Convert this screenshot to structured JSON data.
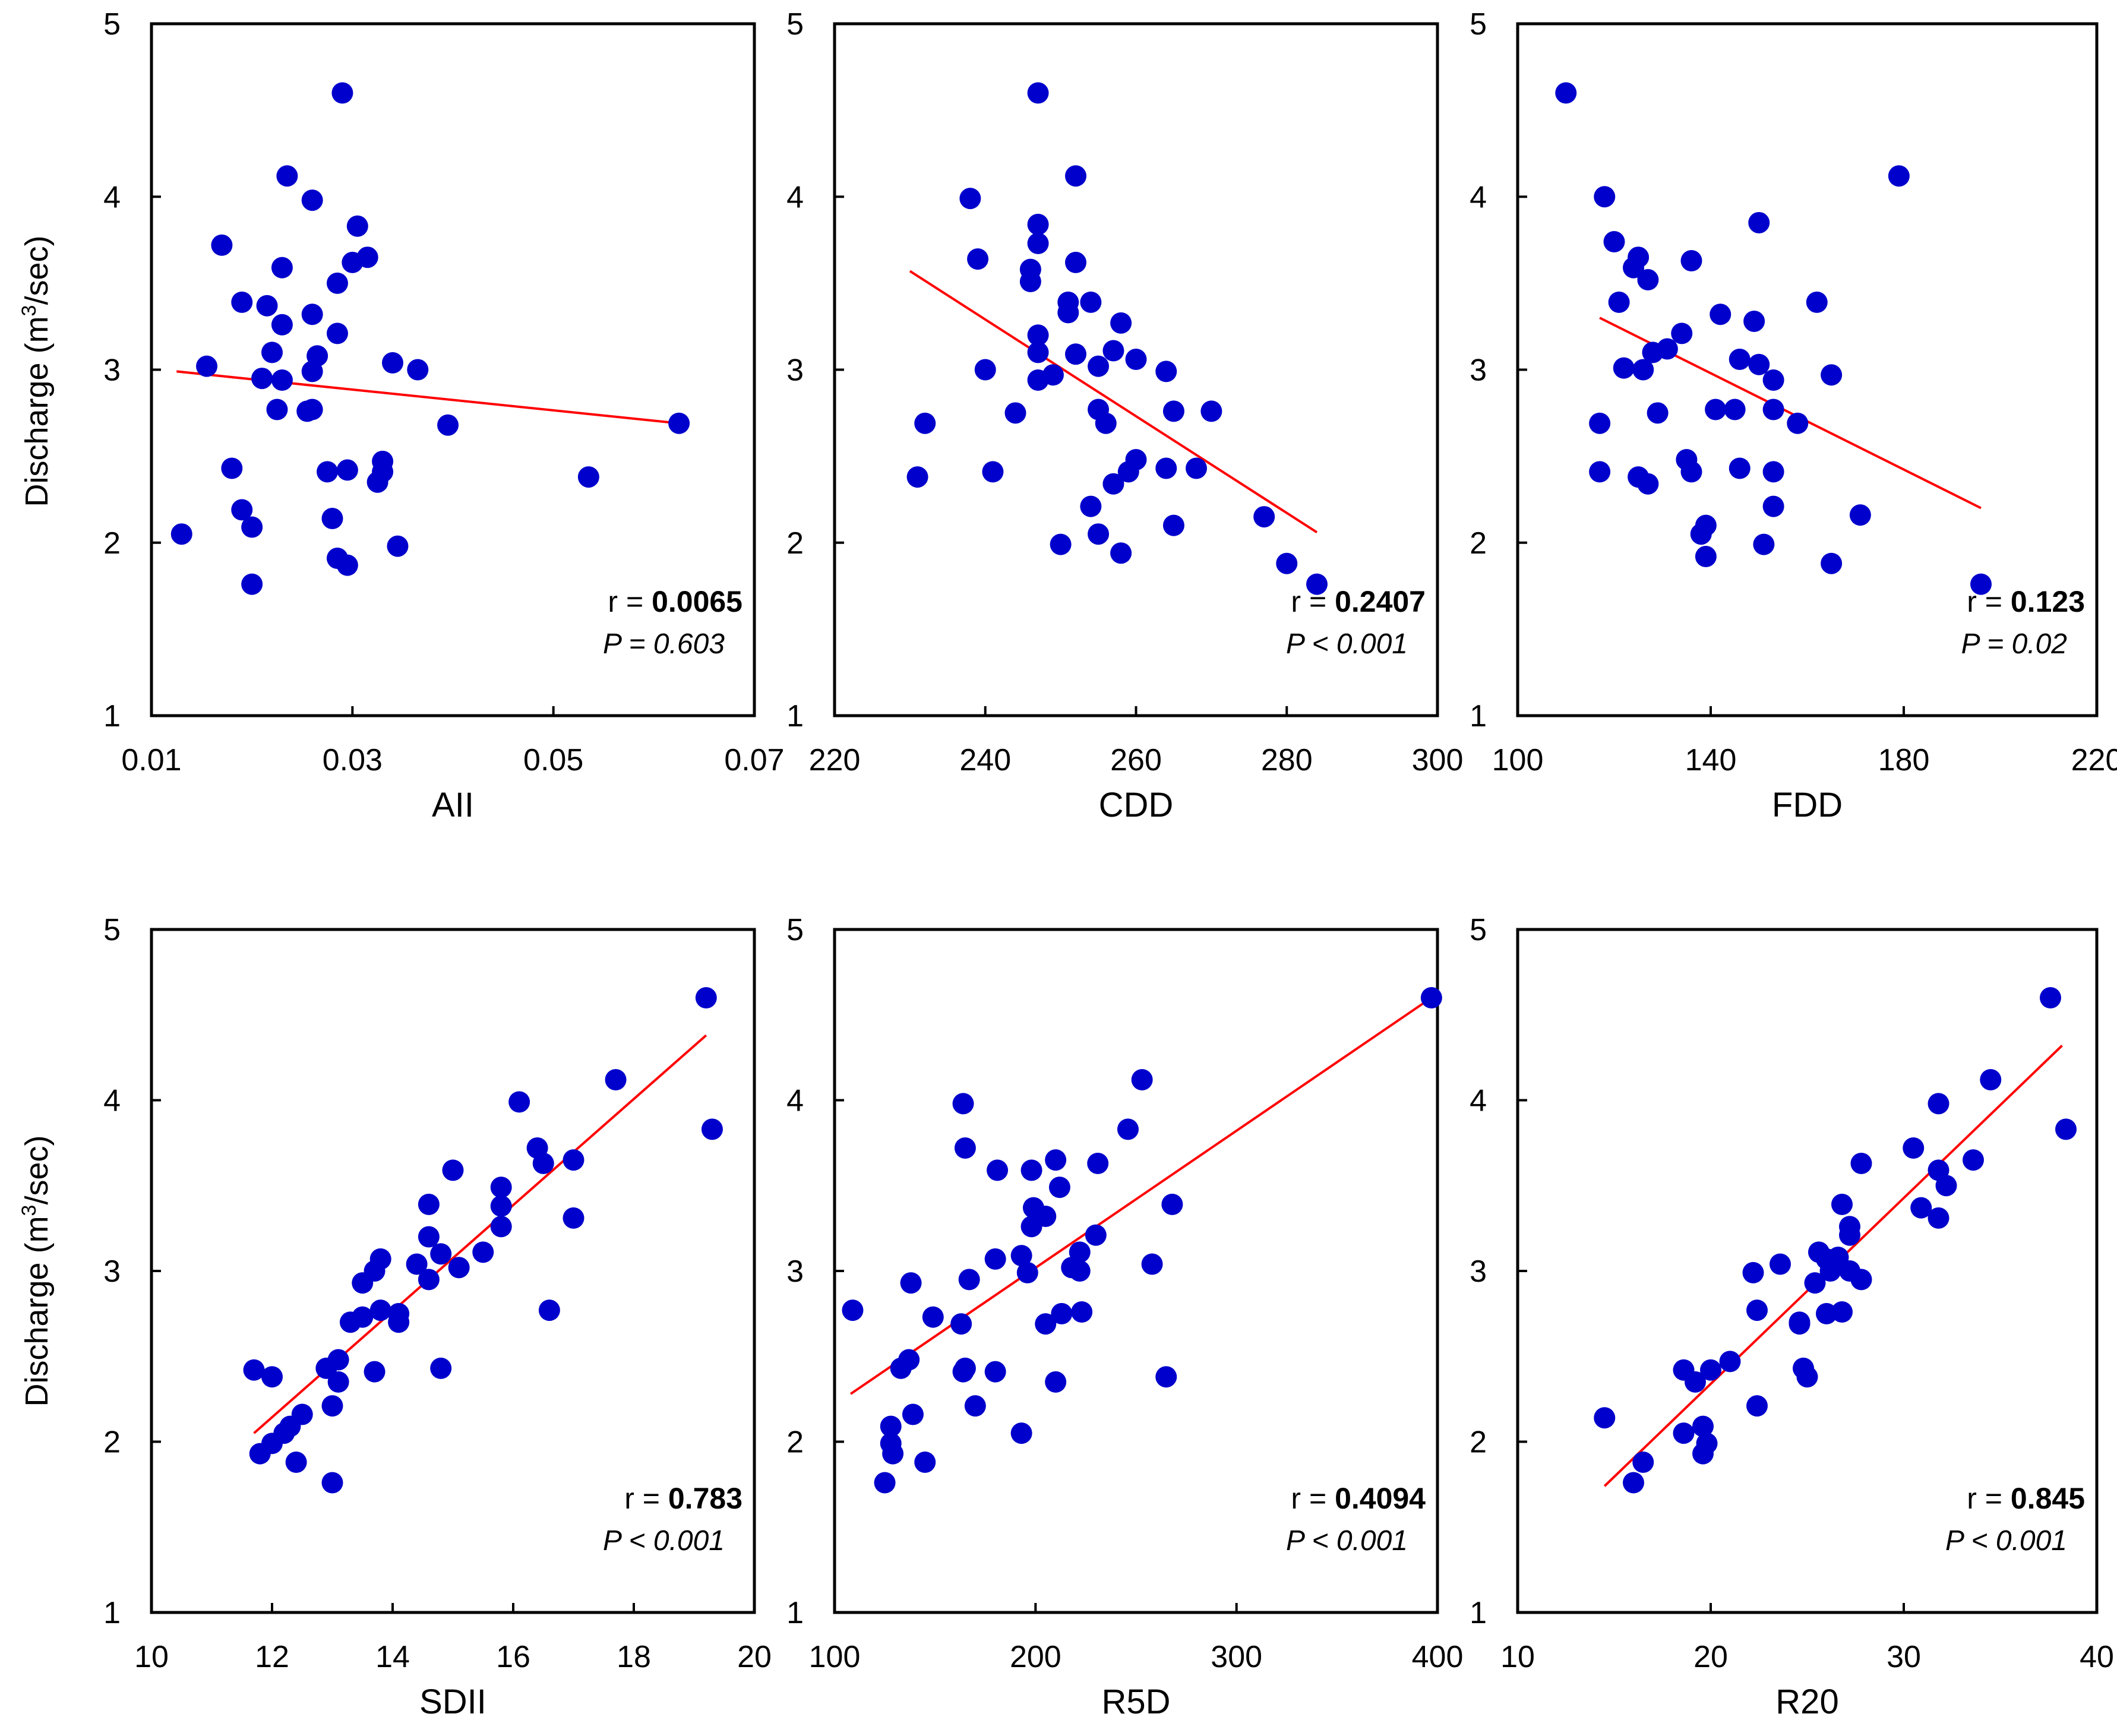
{
  "figure": {
    "ylabel_main": "Discharge (m",
    "ylabel_sup": "3",
    "ylabel_tail": "/sec)"
  },
  "chart_data": [
    {
      "type": "scatter",
      "xlabel": "AII",
      "ylabel": "Discharge (m3/sec)",
      "xlim": [
        0.01,
        0.07
      ],
      "ylim": [
        1,
        5
      ],
      "xticks": [
        0.01,
        0.03,
        0.05,
        0.07
      ],
      "xtick_labels": [
        "0.01",
        "0.03",
        "0.05",
        "0.07"
      ],
      "yticks": [
        1,
        2,
        3,
        4,
        5
      ],
      "ytick_labels": [
        "1",
        "2",
        "3",
        "4",
        "5"
      ],
      "r_label": "r = ",
      "r_value": "0.0065",
      "p_text": "P = 0.603",
      "fit": [
        [
          0.0125,
          2.99
        ],
        [
          0.0625,
          2.69
        ]
      ],
      "points": [
        [
          0.029,
          4.6
        ],
        [
          0.0235,
          4.12
        ],
        [
          0.026,
          3.98
        ],
        [
          0.0305,
          3.83
        ],
        [
          0.017,
          3.72
        ],
        [
          0.0315,
          3.65
        ],
        [
          0.03,
          3.62
        ],
        [
          0.023,
          3.59
        ],
        [
          0.0285,
          3.5
        ],
        [
          0.019,
          3.39
        ],
        [
          0.0215,
          3.37
        ],
        [
          0.026,
          3.32
        ],
        [
          0.023,
          3.26
        ],
        [
          0.0285,
          3.21
        ],
        [
          0.022,
          3.1
        ],
        [
          0.0265,
          3.08
        ],
        [
          0.0155,
          3.02
        ],
        [
          0.034,
          3.04
        ],
        [
          0.0365,
          3.0
        ],
        [
          0.026,
          2.99
        ],
        [
          0.021,
          2.95
        ],
        [
          0.023,
          2.94
        ],
        [
          0.0225,
          2.77
        ],
        [
          0.0255,
          2.76
        ],
        [
          0.026,
          2.77
        ],
        [
          0.0395,
          2.68
        ],
        [
          0.0625,
          2.69
        ],
        [
          0.033,
          2.47
        ],
        [
          0.018,
          2.43
        ],
        [
          0.0275,
          2.41
        ],
        [
          0.0295,
          2.42
        ],
        [
          0.033,
          2.41
        ],
        [
          0.0535,
          2.38
        ],
        [
          0.0325,
          2.35
        ],
        [
          0.019,
          2.19
        ],
        [
          0.028,
          2.14
        ],
        [
          0.02,
          2.09
        ],
        [
          0.013,
          2.05
        ],
        [
          0.0345,
          1.98
        ],
        [
          0.0285,
          1.91
        ],
        [
          0.0295,
          1.87
        ],
        [
          0.02,
          1.76
        ]
      ]
    },
    {
      "type": "scatter",
      "xlabel": "CDD",
      "ylabel": "",
      "xlim": [
        220,
        300
      ],
      "ylim": [
        1,
        5
      ],
      "xticks": [
        220,
        240,
        260,
        280,
        300
      ],
      "xtick_labels": [
        "220",
        "240",
        "260",
        "280",
        "300"
      ],
      "yticks": [
        1,
        2,
        3,
        4,
        5
      ],
      "ytick_labels": [
        "1",
        "2",
        "3",
        "4",
        "5"
      ],
      "r_label": "r = ",
      "r_value": "0.2407",
      "p_text": "P < 0.001",
      "fit": [
        [
          230,
          3.57
        ],
        [
          284,
          2.06
        ]
      ],
      "points": [
        [
          247,
          4.6
        ],
        [
          252,
          4.12
        ],
        [
          238,
          3.99
        ],
        [
          247,
          3.84
        ],
        [
          247,
          3.73
        ],
        [
          239,
          3.64
        ],
        [
          252,
          3.62
        ],
        [
          246,
          3.58
        ],
        [
          246,
          3.51
        ],
        [
          251,
          3.39
        ],
        [
          254,
          3.39
        ],
        [
          251,
          3.33
        ],
        [
          258,
          3.27
        ],
        [
          247,
          3.2
        ],
        [
          247,
          3.1
        ],
        [
          252,
          3.09
        ],
        [
          257,
          3.11
        ],
        [
          260,
          3.06
        ],
        [
          255,
          3.02
        ],
        [
          240,
          3.0
        ],
        [
          249,
          2.97
        ],
        [
          264,
          2.99
        ],
        [
          247,
          2.94
        ],
        [
          255,
          2.77
        ],
        [
          265,
          2.76
        ],
        [
          270,
          2.76
        ],
        [
          244,
          2.75
        ],
        [
          232,
          2.69
        ],
        [
          256,
          2.69
        ],
        [
          260,
          2.48
        ],
        [
          264,
          2.43
        ],
        [
          268,
          2.43
        ],
        [
          241,
          2.41
        ],
        [
          259,
          2.41
        ],
        [
          257,
          2.34
        ],
        [
          231,
          2.38
        ],
        [
          254,
          2.21
        ],
        [
          277,
          2.15
        ],
        [
          265,
          2.1
        ],
        [
          255,
          2.05
        ],
        [
          250,
          1.99
        ],
        [
          258,
          1.94
        ],
        [
          280,
          1.88
        ],
        [
          284,
          1.76
        ]
      ]
    },
    {
      "type": "scatter",
      "xlabel": "FDD",
      "ylabel": "",
      "xlim": [
        100,
        220
      ],
      "ylim": [
        1,
        5
      ],
      "xticks": [
        100,
        140,
        180,
        220
      ],
      "xtick_labels": [
        "100",
        "140",
        "180",
        "220"
      ],
      "yticks": [
        1,
        2,
        3,
        4,
        5
      ],
      "ytick_labels": [
        "1",
        "2",
        "3",
        "4",
        "5"
      ],
      "r_label": "r = ",
      "r_value": "0.123",
      "p_text": "P = 0.02",
      "fit": [
        [
          117,
          3.3
        ],
        [
          196,
          2.2
        ]
      ],
      "points": [
        [
          110,
          4.6
        ],
        [
          179,
          4.12
        ],
        [
          118,
          4.0
        ],
        [
          150,
          3.85
        ],
        [
          120,
          3.74
        ],
        [
          125,
          3.65
        ],
        [
          136,
          3.63
        ],
        [
          124,
          3.59
        ],
        [
          127,
          3.52
        ],
        [
          121,
          3.39
        ],
        [
          162,
          3.39
        ],
        [
          142,
          3.32
        ],
        [
          149,
          3.28
        ],
        [
          134,
          3.21
        ],
        [
          131,
          3.12
        ],
        [
          128,
          3.1
        ],
        [
          146,
          3.06
        ],
        [
          150,
          3.03
        ],
        [
          122,
          3.01
        ],
        [
          126,
          3.0
        ],
        [
          165,
          2.97
        ],
        [
          153,
          2.94
        ],
        [
          129,
          2.75
        ],
        [
          141,
          2.77
        ],
        [
          145,
          2.77
        ],
        [
          153,
          2.77
        ],
        [
          158,
          2.69
        ],
        [
          117,
          2.69
        ],
        [
          135,
          2.48
        ],
        [
          136,
          2.41
        ],
        [
          117,
          2.41
        ],
        [
          146,
          2.43
        ],
        [
          153,
          2.41
        ],
        [
          125,
          2.38
        ],
        [
          127,
          2.34
        ],
        [
          153,
          2.21
        ],
        [
          171,
          2.16
        ],
        [
          139,
          2.1
        ],
        [
          138,
          2.05
        ],
        [
          151,
          1.99
        ],
        [
          139,
          1.92
        ],
        [
          165,
          1.88
        ],
        [
          196,
          1.76
        ]
      ]
    },
    {
      "type": "scatter",
      "xlabel": "SDII",
      "ylabel": "Discharge (m3/sec)",
      "xlim": [
        10,
        20
      ],
      "ylim": [
        1,
        5
      ],
      "xticks": [
        10,
        12,
        14,
        16,
        18,
        20
      ],
      "xtick_labels": [
        "10",
        "12",
        "14",
        "16",
        "18",
        "20"
      ],
      "yticks": [
        1,
        2,
        3,
        4,
        5
      ],
      "ytick_labels": [
        "1",
        "2",
        "3",
        "4",
        "5"
      ],
      "r_label": "r = ",
      "r_value": "0.783",
      "p_text": "P < 0.001",
      "fit": [
        [
          11.7,
          2.05
        ],
        [
          19.2,
          4.38
        ]
      ],
      "points": [
        [
          19.2,
          4.6
        ],
        [
          17.7,
          4.12
        ],
        [
          16.1,
          3.99
        ],
        [
          19.3,
          3.83
        ],
        [
          16.4,
          3.72
        ],
        [
          17.0,
          3.65
        ],
        [
          16.5,
          3.63
        ],
        [
          15.0,
          3.59
        ],
        [
          15.8,
          3.49
        ],
        [
          14.6,
          3.39
        ],
        [
          15.8,
          3.38
        ],
        [
          17.0,
          3.31
        ],
        [
          15.8,
          3.26
        ],
        [
          14.6,
          3.2
        ],
        [
          13.8,
          3.07
        ],
        [
          14.8,
          3.1
        ],
        [
          15.5,
          3.11
        ],
        [
          14.4,
          3.04
        ],
        [
          15.1,
          3.02
        ],
        [
          13.7,
          3.0
        ],
        [
          14.6,
          2.95
        ],
        [
          13.5,
          2.93
        ],
        [
          13.8,
          2.77
        ],
        [
          14.1,
          2.75
        ],
        [
          16.6,
          2.77
        ],
        [
          13.5,
          2.73
        ],
        [
          13.3,
          2.7
        ],
        [
          14.1,
          2.7
        ],
        [
          13.1,
          2.48
        ],
        [
          12.9,
          2.43
        ],
        [
          14.8,
          2.43
        ],
        [
          11.7,
          2.42
        ],
        [
          12.0,
          2.38
        ],
        [
          13.7,
          2.41
        ],
        [
          13.1,
          2.35
        ],
        [
          13.0,
          2.21
        ],
        [
          12.5,
          2.16
        ],
        [
          12.3,
          2.09
        ],
        [
          12.2,
          2.05
        ],
        [
          12.0,
          1.99
        ],
        [
          11.8,
          1.93
        ],
        [
          12.4,
          1.88
        ],
        [
          13.0,
          1.76
        ]
      ]
    },
    {
      "type": "scatter",
      "xlabel": "R5D",
      "ylabel": "",
      "xlim": [
        100,
        400
      ],
      "ylim": [
        1,
        5
      ],
      "xticks": [
        100,
        200,
        300,
        400
      ],
      "xtick_labels": [
        "100",
        "200",
        "300",
        "400"
      ],
      "yticks": [
        1,
        2,
        3,
        4,
        5
      ],
      "ytick_labels": [
        "1",
        "2",
        "3",
        "4",
        "5"
      ],
      "r_label": "r = ",
      "r_value": "0.4094",
      "p_text": "P < 0.001",
      "fit": [
        [
          108,
          2.28
        ],
        [
          397,
          4.6
        ]
      ],
      "points": [
        [
          397,
          4.6
        ],
        [
          253,
          4.12
        ],
        [
          164,
          3.98
        ],
        [
          246,
          3.83
        ],
        [
          165,
          3.72
        ],
        [
          210,
          3.65
        ],
        [
          198,
          3.59
        ],
        [
          231,
          3.63
        ],
        [
          181,
          3.59
        ],
        [
          212,
          3.49
        ],
        [
          268,
          3.39
        ],
        [
          199,
          3.37
        ],
        [
          205,
          3.32
        ],
        [
          198,
          3.26
        ],
        [
          230,
          3.21
        ],
        [
          222,
          3.11
        ],
        [
          193,
          3.09
        ],
        [
          180,
          3.07
        ],
        [
          218,
          3.02
        ],
        [
          258,
          3.04
        ],
        [
          222,
          3.0
        ],
        [
          196,
          2.99
        ],
        [
          167,
          2.95
        ],
        [
          138,
          2.93
        ],
        [
          109,
          2.77
        ],
        [
          149,
          2.73
        ],
        [
          213,
          2.75
        ],
        [
          223,
          2.76
        ],
        [
          163,
          2.69
        ],
        [
          205,
          2.69
        ],
        [
          137,
          2.48
        ],
        [
          133,
          2.43
        ],
        [
          165,
          2.43
        ],
        [
          164,
          2.41
        ],
        [
          180,
          2.41
        ],
        [
          210,
          2.35
        ],
        [
          265,
          2.38
        ],
        [
          170,
          2.21
        ],
        [
          139,
          2.16
        ],
        [
          128,
          2.09
        ],
        [
          193,
          2.05
        ],
        [
          128,
          1.99
        ],
        [
          129,
          1.93
        ],
        [
          145,
          1.88
        ],
        [
          125,
          1.76
        ]
      ]
    },
    {
      "type": "scatter",
      "xlabel": "R20",
      "ylabel": "",
      "xlim": [
        10,
        40
      ],
      "ylim": [
        1,
        5
      ],
      "xticks": [
        10,
        20,
        30,
        40
      ],
      "xtick_labels": [
        "10",
        "20",
        "30",
        "40"
      ],
      "yticks": [
        1,
        2,
        3,
        4,
        5
      ],
      "ytick_labels": [
        "1",
        "2",
        "3",
        "4",
        "5"
      ],
      "r_label": "r = ",
      "r_value": "0.845",
      "p_text": "P < 0.001",
      "fit": [
        [
          14.5,
          1.74
        ],
        [
          38.2,
          4.32
        ]
      ],
      "points": [
        [
          37.6,
          4.6
        ],
        [
          34.5,
          4.12
        ],
        [
          31.8,
          3.98
        ],
        [
          38.4,
          3.83
        ],
        [
          30.5,
          3.72
        ],
        [
          33.6,
          3.65
        ],
        [
          27.8,
          3.63
        ],
        [
          31.8,
          3.59
        ],
        [
          32.2,
          3.5
        ],
        [
          26.8,
          3.39
        ],
        [
          30.9,
          3.37
        ],
        [
          31.8,
          3.31
        ],
        [
          27.2,
          3.26
        ],
        [
          27.2,
          3.21
        ],
        [
          25.6,
          3.11
        ],
        [
          26.6,
          3.08
        ],
        [
          26.0,
          3.07
        ],
        [
          23.6,
          3.04
        ],
        [
          26.2,
          3.0
        ],
        [
          27.2,
          3.0
        ],
        [
          22.2,
          2.99
        ],
        [
          25.4,
          2.93
        ],
        [
          27.8,
          2.95
        ],
        [
          22.4,
          2.77
        ],
        [
          26.8,
          2.76
        ],
        [
          26.0,
          2.75
        ],
        [
          24.6,
          2.69
        ],
        [
          24.6,
          2.7
        ],
        [
          24.8,
          2.43
        ],
        [
          21.0,
          2.47
        ],
        [
          20.0,
          2.42
        ],
        [
          18.6,
          2.42
        ],
        [
          25.0,
          2.38
        ],
        [
          19.2,
          2.35
        ],
        [
          22.4,
          2.21
        ],
        [
          14.5,
          2.14
        ],
        [
          18.6,
          2.05
        ],
        [
          19.6,
          2.09
        ],
        [
          19.8,
          1.99
        ],
        [
          19.6,
          1.93
        ],
        [
          16.5,
          1.88
        ],
        [
          16.0,
          1.76
        ]
      ]
    }
  ]
}
